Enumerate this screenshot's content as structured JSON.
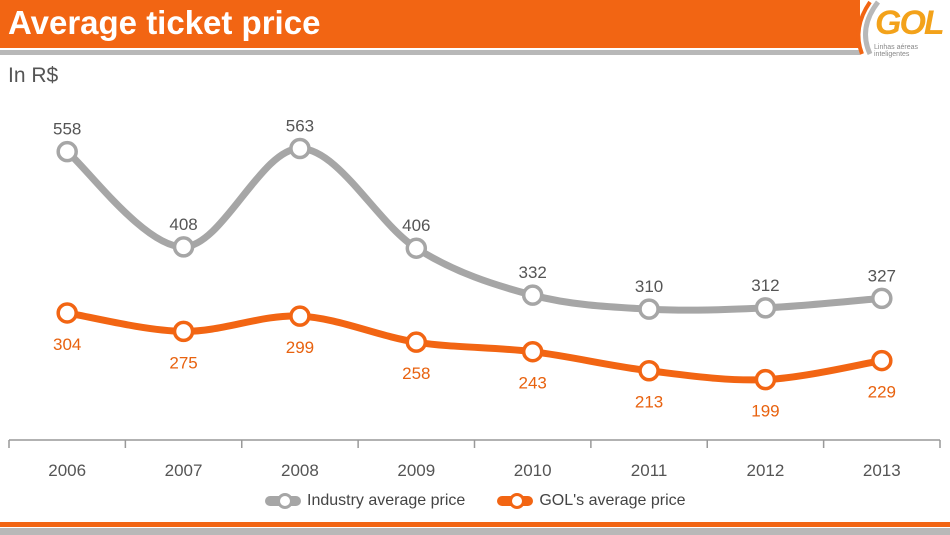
{
  "header": {
    "title": "Average ticket price",
    "logo_text": "GOL",
    "logo_tagline": "Linhas aéreas inteligentes"
  },
  "subtitle": "In R$",
  "colors": {
    "accent": "#f26513",
    "gray": "#a6a6a6"
  },
  "chart_data": {
    "type": "line",
    "categories": [
      "2006",
      "2007",
      "2008",
      "2009",
      "2010",
      "2011",
      "2012",
      "2013"
    ],
    "series": [
      {
        "name": "Industry average price",
        "values": [
          558,
          408,
          563,
          406,
          332,
          310,
          312,
          327
        ],
        "color": "#a6a6a6",
        "label_color": "#555555"
      },
      {
        "name": "GOL's average price",
        "values": [
          304,
          275,
          299,
          258,
          243,
          213,
          199,
          229
        ],
        "color": "#f26513",
        "label_color": "#e8620f"
      }
    ],
    "legend": "bottom",
    "grid": false,
    "smooth": true,
    "data_labels": true
  }
}
